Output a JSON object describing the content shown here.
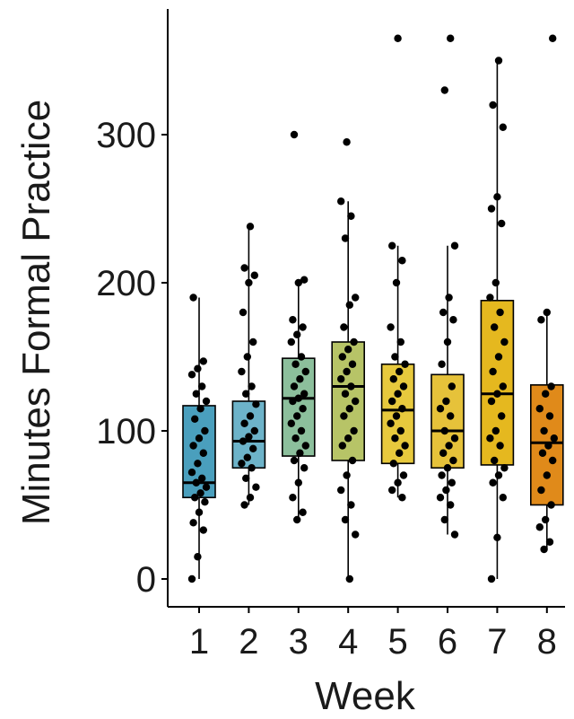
{
  "chart_data": {
    "type": "box",
    "title": "",
    "xlabel": "Week",
    "ylabel": "Minutes Formal Practice",
    "categories": [
      "1",
      "2",
      "3",
      "4",
      "5",
      "6",
      "7",
      "8"
    ],
    "yticks": [
      0,
      100,
      200,
      300
    ],
    "ytick_labels": [
      "0",
      "100",
      "200",
      "300"
    ],
    "ylim": [
      -20,
      385
    ],
    "grid": false,
    "legend": "none",
    "boxes": [
      {
        "week": "1",
        "color": "#4a9fbd",
        "whisker_low": 0,
        "q1": 55,
        "median": 65,
        "q3": 117,
        "whisker_high": 190
      },
      {
        "week": "2",
        "color": "#6db3c9",
        "whisker_low": 50,
        "q1": 75,
        "median": 93,
        "q3": 120,
        "whisker_high": 238
      },
      {
        "week": "3",
        "color": "#8cbf9c",
        "whisker_low": 40,
        "q1": 83,
        "median": 122,
        "q3": 149,
        "whisker_high": 200
      },
      {
        "week": "4",
        "color": "#b7c467",
        "whisker_low": 0,
        "q1": 80,
        "median": 130,
        "q3": 160,
        "whisker_high": 255
      },
      {
        "week": "5",
        "color": "#e7c93d",
        "whisker_low": 55,
        "q1": 78,
        "median": 114,
        "q3": 145,
        "whisker_high": 225
      },
      {
        "week": "6",
        "color": "#e6c23a",
        "whisker_low": 30,
        "q1": 75,
        "median": 100,
        "q3": 138,
        "whisker_high": 225
      },
      {
        "week": "7",
        "color": "#e5b81f",
        "whisker_low": 0,
        "q1": 77,
        "median": 125,
        "q3": 188,
        "whisker_high": 350
      },
      {
        "week": "8",
        "color": "#e08a1a",
        "whisker_low": 20,
        "q1": 50,
        "median": 92,
        "q3": 131,
        "whisker_high": 180
      }
    ],
    "points": [
      [
        0,
        15,
        33,
        38,
        45,
        52,
        55,
        58,
        62,
        65,
        68,
        72,
        78,
        85,
        90,
        95,
        100,
        108,
        115,
        120,
        125,
        130,
        138,
        142,
        147,
        190
      ],
      [
        50,
        55,
        62,
        68,
        75,
        78,
        82,
        88,
        93,
        96,
        100,
        105,
        110,
        118,
        125,
        130,
        140,
        150,
        160,
        180,
        200,
        205,
        210,
        238
      ],
      [
        40,
        45,
        55,
        65,
        75,
        80,
        85,
        90,
        95,
        100,
        105,
        110,
        115,
        120,
        122,
        125,
        130,
        135,
        140,
        145,
        150,
        160,
        165,
        170,
        175,
        200,
        202,
        300
      ],
      [
        0,
        30,
        40,
        50,
        60,
        70,
        80,
        90,
        95,
        100,
        110,
        115,
        120,
        125,
        130,
        135,
        140,
        145,
        150,
        155,
        160,
        170,
        185,
        190,
        230,
        245,
        255,
        295
      ],
      [
        55,
        60,
        65,
        70,
        78,
        85,
        90,
        95,
        100,
        105,
        110,
        115,
        120,
        125,
        130,
        135,
        140,
        145,
        150,
        160,
        170,
        200,
        215,
        225,
        365
      ],
      [
        30,
        40,
        50,
        55,
        60,
        65,
        70,
        75,
        80,
        85,
        90,
        95,
        100,
        110,
        115,
        120,
        130,
        145,
        160,
        175,
        180,
        190,
        225,
        330,
        365
      ],
      [
        0,
        28,
        55,
        65,
        70,
        75,
        80,
        90,
        95,
        100,
        110,
        120,
        125,
        130,
        140,
        150,
        160,
        170,
        180,
        190,
        200,
        240,
        250,
        258,
        305,
        320,
        350
      ],
      [
        20,
        25,
        35,
        40,
        50,
        60,
        70,
        80,
        85,
        90,
        95,
        100,
        110,
        115,
        125,
        130,
        175,
        180,
        365
      ]
    ]
  }
}
